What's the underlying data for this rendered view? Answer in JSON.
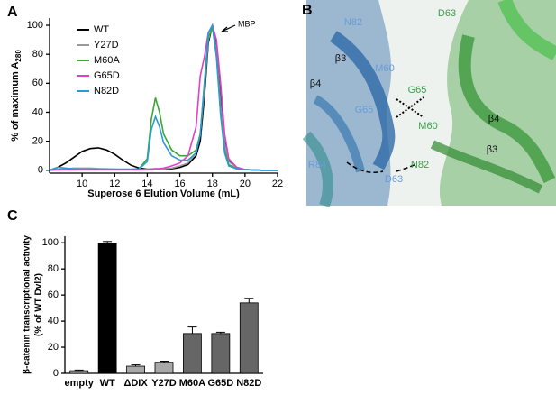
{
  "chart_data": [
    {
      "type": "line",
      "panel_label": "A",
      "xlabel": "Superose 6 Elution Volume (mL)",
      "ylabel": "% of maximum A",
      "ylabel_subscript": "280",
      "annotation": "MBP",
      "legend": "upper left",
      "xlim": [
        8,
        22
      ],
      "xticks": [
        10,
        12,
        14,
        16,
        18,
        20,
        22
      ],
      "ylim": [
        -2,
        105
      ],
      "yticks": [
        0,
        20,
        40,
        60,
        80,
        100
      ],
      "x": [
        8,
        8.5,
        9,
        9.5,
        10,
        10.5,
        11,
        11.5,
        12,
        12.5,
        13,
        13.5,
        14,
        14.25,
        14.5,
        14.75,
        15,
        15.5,
        16,
        16.5,
        17,
        17.25,
        17.5,
        17.75,
        18,
        18.25,
        18.5,
        18.75,
        19,
        19.5,
        20,
        21,
        22
      ],
      "series": [
        {
          "name": "WT",
          "color": "#000000",
          "values": [
            0,
            2,
            5,
            9,
            13,
            15,
            15.5,
            14,
            11,
            7,
            3.5,
            1.5,
            0.8,
            0.6,
            0.5,
            0.5,
            0.5,
            1,
            2,
            4,
            10,
            20,
            50,
            88,
            100,
            85,
            50,
            20,
            7,
            2,
            0.5,
            0,
            0
          ]
        },
        {
          "name": "Y27D",
          "color": "#9a9a9a",
          "values": [
            0,
            0.5,
            1,
            1.5,
            1.5,
            1.5,
            1.2,
            1,
            0.8,
            0.5,
            0.5,
            0.5,
            0.8,
            1,
            1.2,
            1,
            1,
            1.5,
            3,
            5,
            12,
            25,
            55,
            90,
            100,
            82,
            45,
            18,
            6,
            1.5,
            0.5,
            0,
            0
          ]
        },
        {
          "name": "M60A",
          "color": "#3aa635",
          "values": [
            0,
            0.5,
            0.5,
            0.5,
            0.5,
            0.5,
            0.5,
            0.5,
            0.5,
            0.5,
            0.5,
            1,
            8,
            35,
            50,
            40,
            25,
            14,
            10,
            10,
            14,
            25,
            58,
            92,
            98,
            80,
            40,
            14,
            4,
            1,
            0.5,
            0,
            0
          ]
        },
        {
          "name": "G65D",
          "color": "#e040c8",
          "values": [
            0,
            0.3,
            0.3,
            0.3,
            0.3,
            0.3,
            0.3,
            0.3,
            0.3,
            0.3,
            0.3,
            0.3,
            0.5,
            0.7,
            1,
            1.2,
            1.5,
            3,
            5,
            10,
            30,
            65,
            78,
            95,
            100,
            90,
            60,
            25,
            8,
            2,
            0.5,
            0,
            0
          ]
        },
        {
          "name": "N82D",
          "color": "#2a9ad8",
          "values": [
            0,
            2,
            1.5,
            1,
            0.8,
            0.8,
            0.8,
            0.8,
            0.8,
            0.8,
            0.8,
            1,
            6,
            28,
            37,
            30,
            19,
            10,
            7,
            7,
            12,
            24,
            60,
            95,
            100,
            78,
            38,
            12,
            3,
            1,
            0.5,
            0,
            0
          ]
        }
      ]
    },
    {
      "type": "bar",
      "panel_label": "C",
      "ylabel": [
        "β-catenin transcriptional activity",
        "(% of WT Dvl2)"
      ],
      "categories": [
        "empty",
        "WT",
        "ΔDIX",
        "Y27D",
        "M60A",
        "G65D",
        "N82D"
      ],
      "values": [
        2,
        99.5,
        5.5,
        8.5,
        30.5,
        30.5,
        54
      ],
      "errors": [
        0.5,
        1.5,
        1,
        0.8,
        5,
        1,
        3.5
      ],
      "colors": [
        "#c8c8c8",
        "#000000",
        "#a8a8a8",
        "#a8a8a8",
        "#666666",
        "#666666",
        "#666666"
      ],
      "ylim": [
        0,
        105
      ],
      "yticks": [
        0,
        20,
        40,
        60,
        80,
        100
      ]
    }
  ],
  "structure_panel": {
    "panel_label": "B",
    "labels": [
      {
        "text": "N82",
        "color": "#6a9bd8"
      },
      {
        "text": "D63",
        "color": "#3aa04a"
      },
      {
        "text": "β3",
        "color": "#111111"
      },
      {
        "text": "β4",
        "color": "#111111"
      },
      {
        "text": "M60",
        "color": "#6a9bd8"
      },
      {
        "text": "G65",
        "color": "#3aa04a"
      },
      {
        "text": "G65",
        "color": "#6a9bd8"
      },
      {
        "text": "M60",
        "color": "#3aa04a"
      },
      {
        "text": "β4",
        "color": "#111111"
      },
      {
        "text": "β3",
        "color": "#111111"
      },
      {
        "text": "R84",
        "color": "#6a9bd8"
      },
      {
        "text": "N82",
        "color": "#3aa04a"
      },
      {
        "text": "D63",
        "color": "#6a9bd8"
      }
    ]
  }
}
